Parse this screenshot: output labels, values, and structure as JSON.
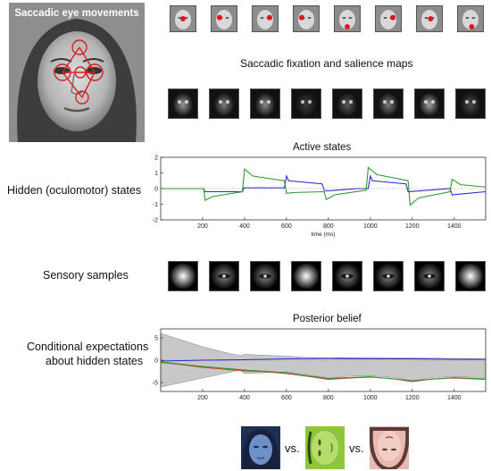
{
  "title_overlay": "Saccadic eye movements",
  "fixation_heading": "Saccadic fixation and salience maps",
  "fixation_dots": [
    {
      "dx": 0.0,
      "dy": 0.0
    },
    {
      "dx": -0.18,
      "dy": -0.05
    },
    {
      "dx": 0.18,
      "dy": -0.05
    },
    {
      "dx": -0.18,
      "dy": -0.05
    },
    {
      "dx": 0.0,
      "dy": 0.32
    },
    {
      "dx": 0.18,
      "dy": -0.05
    },
    {
      "dx": 0.05,
      "dy": 0.0
    },
    {
      "dx": 0.05,
      "dy": 0.32
    }
  ],
  "left_labels": {
    "hidden_states": "Hidden (oculomotor) states",
    "sensory_samples": "Sensory samples",
    "conditional_line1": "Conditional expectations",
    "conditional_line2": "about hidden states"
  },
  "vs_labels": [
    "vs.",
    "vs."
  ],
  "chart_data": [
    {
      "type": "line",
      "title": "Active states",
      "xlabel": "time (ms)",
      "ylabel": "",
      "xlim": [
        0,
        1550
      ],
      "ylim": [
        -2,
        2
      ],
      "xticks": [
        200,
        400,
        600,
        800,
        1000,
        1200,
        1400
      ],
      "yticks": [
        2,
        1,
        0,
        -1,
        -2
      ],
      "series": [
        {
          "color": "#2b2bd0",
          "values": [
            [
              0,
              0
            ],
            [
              205,
              0
            ],
            [
              210,
              -0.2
            ],
            [
              390,
              -0.2
            ],
            [
              398,
              0.05
            ],
            [
              590,
              0.05
            ],
            [
              600,
              0.8
            ],
            [
              610,
              0.5
            ],
            [
              770,
              0.3
            ],
            [
              780,
              -0.1
            ],
            [
              790,
              -0.15
            ],
            [
              940,
              0
            ],
            [
              990,
              0
            ],
            [
              1000,
              0.8
            ],
            [
              1010,
              0.5
            ],
            [
              1170,
              0.3
            ],
            [
              1180,
              -0.2
            ],
            [
              1380,
              0
            ],
            [
              1390,
              -0.4
            ],
            [
              1550,
              -0.2
            ]
          ]
        },
        {
          "color": "#2e9a2e",
          "values": [
            [
              0,
              0
            ],
            [
              205,
              0
            ],
            [
              212,
              -0.75
            ],
            [
              250,
              -0.5
            ],
            [
              390,
              -0.2
            ],
            [
              400,
              1.25
            ],
            [
              440,
              0.8
            ],
            [
              590,
              0.5
            ],
            [
              600,
              -0.3
            ],
            [
              640,
              -0.25
            ],
            [
              780,
              -0.2
            ],
            [
              790,
              -0.7
            ],
            [
              830,
              -0.4
            ],
            [
              980,
              -0.1
            ],
            [
              990,
              1.35
            ],
            [
              1030,
              0.9
            ],
            [
              1180,
              0.5
            ],
            [
              1190,
              -1.05
            ],
            [
              1230,
              -0.6
            ],
            [
              1380,
              -0.2
            ],
            [
              1390,
              0.6
            ],
            [
              1430,
              0.25
            ],
            [
              1550,
              0.1
            ]
          ]
        }
      ]
    },
    {
      "type": "line",
      "title": "Posterior belief",
      "xlabel": "",
      "ylabel": "",
      "xlim": [
        0,
        1550
      ],
      "ylim": [
        -7,
        7
      ],
      "xticks": [
        200,
        400,
        600,
        800,
        1000,
        1200,
        1400
      ],
      "yticks": [
        5,
        0,
        -5
      ],
      "band": {
        "upper": [
          [
            0,
            6
          ],
          [
            100,
            4.5
          ],
          [
            200,
            3
          ],
          [
            300,
            1.8
          ],
          [
            380,
            1
          ],
          [
            400,
            1.3
          ],
          [
            600,
            0.9
          ],
          [
            700,
            0.6
          ],
          [
            800,
            0.5
          ],
          [
            1000,
            0.6
          ],
          [
            1200,
            0.5
          ],
          [
            1400,
            0.4
          ],
          [
            1550,
            0.3
          ]
        ],
        "lower": [
          [
            0,
            -6
          ],
          [
            100,
            -5
          ],
          [
            200,
            -4
          ],
          [
            300,
            -3
          ],
          [
            380,
            -2.2
          ],
          [
            400,
            -3
          ],
          [
            600,
            -2.6
          ],
          [
            700,
            -3.2
          ],
          [
            800,
            -4
          ],
          [
            900,
            -3.6
          ],
          [
            1000,
            -3.5
          ],
          [
            1100,
            -3.8
          ],
          [
            1200,
            -4.6
          ],
          [
            1300,
            -3.9
          ],
          [
            1400,
            -3.7
          ],
          [
            1550,
            -3.9
          ]
        ]
      },
      "series": [
        {
          "color": "#2b2bd0",
          "values": [
            [
              0,
              -0.2
            ],
            [
              200,
              0
            ],
            [
              400,
              0.1
            ],
            [
              600,
              0.3
            ],
            [
              800,
              0.4
            ],
            [
              1000,
              0.3
            ],
            [
              1200,
              0.3
            ],
            [
              1400,
              0.2
            ],
            [
              1550,
              0.2
            ]
          ]
        },
        {
          "color": "#cc3b2b",
          "values": [
            [
              0,
              -0.5
            ],
            [
              100,
              -1
            ],
            [
              200,
              -1.6
            ],
            [
              300,
              -2
            ],
            [
              400,
              -2.4
            ],
            [
              500,
              -2.6
            ],
            [
              600,
              -3
            ],
            [
              700,
              -3.6
            ],
            [
              800,
              -4.3
            ],
            [
              900,
              -4
            ],
            [
              1000,
              -3.8
            ],
            [
              1100,
              -4.1
            ],
            [
              1200,
              -4.8
            ],
            [
              1300,
              -4.2
            ],
            [
              1400,
              -4
            ],
            [
              1550,
              -4.3
            ]
          ]
        },
        {
          "color": "#2e9a2e",
          "values": [
            [
              0,
              -0.4
            ],
            [
              200,
              -1.4
            ],
            [
              400,
              -2.2
            ],
            [
              600,
              -2.8
            ],
            [
              800,
              -4.1
            ],
            [
              1000,
              -3.7
            ],
            [
              1200,
              -4.6
            ],
            [
              1400,
              -3.9
            ],
            [
              1550,
              -4.2
            ]
          ]
        }
      ]
    }
  ]
}
